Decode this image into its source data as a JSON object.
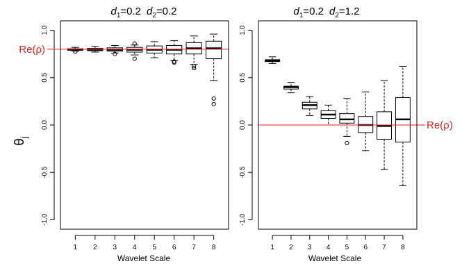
{
  "y_axis_label": "θj",
  "reference_label": "Re(ρ)",
  "colors": {
    "reference_line": "#e0231f",
    "box": "#000000",
    "background": "#ffffff"
  },
  "chart_data": [
    {
      "type": "box",
      "title": {
        "d1_symbol": "d",
        "d1_sub": "1",
        "d1_value": "=0.2",
        "d2_symbol": "d",
        "d2_sub": "2",
        "d2_value": "=0.2"
      },
      "xlabel": "Wavelet Scale",
      "ylabel": "θj",
      "ylim": [
        -1.1,
        1.1
      ],
      "yticks": [
        -1.0,
        -0.5,
        0.0,
        0.5,
        1.0
      ],
      "ytick_labels": [
        "-1.0",
        "-0.5",
        "0.0",
        "0.5",
        "1.0"
      ],
      "reference_value": 0.8,
      "reference_label": "Re(ρ)",
      "reference_label_side": "left",
      "categories": [
        "1",
        "2",
        "3",
        "4",
        "5",
        "6",
        "7",
        "8"
      ],
      "boxes": [
        {
          "whisker_low": 0.78,
          "q1": 0.79,
          "median": 0.795,
          "q3": 0.805,
          "whisker_high": 0.82,
          "outliers": [
            0.775
          ]
        },
        {
          "whisker_low": 0.77,
          "q1": 0.785,
          "median": 0.795,
          "q3": 0.81,
          "whisker_high": 0.83,
          "outliers": []
        },
        {
          "whisker_low": 0.76,
          "q1": 0.78,
          "median": 0.795,
          "q3": 0.815,
          "whisker_high": 0.84,
          "outliers": [
            0.75
          ]
        },
        {
          "whisker_low": 0.74,
          "q1": 0.77,
          "median": 0.795,
          "q3": 0.82,
          "whisker_high": 0.845,
          "outliers": [
            0.86,
            0.7
          ]
        },
        {
          "whisker_low": 0.71,
          "q1": 0.76,
          "median": 0.795,
          "q3": 0.835,
          "whisker_high": 0.88,
          "outliers": []
        },
        {
          "whisker_low": 0.68,
          "q1": 0.75,
          "median": 0.795,
          "q3": 0.84,
          "whisker_high": 0.89,
          "outliers": [
            0.67,
            0.66
          ]
        },
        {
          "whisker_low": 0.64,
          "q1": 0.75,
          "median": 0.81,
          "q3": 0.87,
          "whisker_high": 0.94,
          "outliers": [
            0.62,
            0.6
          ]
        },
        {
          "whisker_low": 0.47,
          "q1": 0.7,
          "median": 0.81,
          "q3": 0.885,
          "whisker_high": 0.96,
          "outliers": [
            0.28,
            0.22
          ]
        }
      ]
    },
    {
      "type": "box",
      "title": {
        "d1_symbol": "d",
        "d1_sub": "1",
        "d1_value": "=0.2",
        "d2_symbol": "d",
        "d2_sub": "2",
        "d2_value": "=1.2"
      },
      "xlabel": "Wavelet Scale",
      "ylim": [
        -1.1,
        1.1
      ],
      "yticks": [
        -1.0,
        -0.5,
        0.0,
        0.5,
        1.0
      ],
      "ytick_labels": [
        "-1.0",
        "-0.5",
        "0.0",
        "0.5",
        "1.0"
      ],
      "reference_value": 0.0,
      "reference_label": "Re(ρ)",
      "reference_label_side": "right",
      "categories": [
        "1",
        "2",
        "3",
        "4",
        "5",
        "6",
        "7",
        "8"
      ],
      "boxes": [
        {
          "whisker_low": 0.65,
          "q1": 0.67,
          "median": 0.68,
          "q3": 0.69,
          "whisker_high": 0.72,
          "outliers": []
        },
        {
          "whisker_low": 0.34,
          "q1": 0.38,
          "median": 0.4,
          "q3": 0.41,
          "whisker_high": 0.45,
          "outliers": []
        },
        {
          "whisker_low": 0.1,
          "q1": 0.17,
          "median": 0.21,
          "q3": 0.24,
          "whisker_high": 0.3,
          "outliers": []
        },
        {
          "whisker_low": 0.0,
          "q1": 0.07,
          "median": 0.11,
          "q3": 0.15,
          "whisker_high": 0.21,
          "outliers": []
        },
        {
          "whisker_low": -0.12,
          "q1": 0.02,
          "median": 0.06,
          "q3": 0.12,
          "whisker_high": 0.28,
          "outliers": [
            -0.19
          ]
        },
        {
          "whisker_low": -0.27,
          "q1": -0.08,
          "median": 0.0,
          "q3": 0.09,
          "whisker_high": 0.35,
          "outliers": []
        },
        {
          "whisker_low": -0.47,
          "q1": -0.15,
          "median": -0.01,
          "q3": 0.14,
          "whisker_high": 0.47,
          "outliers": []
        },
        {
          "whisker_low": -0.64,
          "q1": -0.18,
          "median": 0.06,
          "q3": 0.29,
          "whisker_high": 0.62,
          "outliers": []
        }
      ]
    }
  ]
}
